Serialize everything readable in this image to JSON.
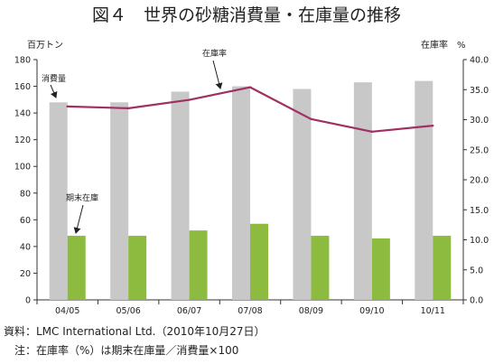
{
  "page": {
    "title": "図４　世界の砂糖消費量・在庫量の推移",
    "source": "資料：LMC International Ltd.（2010年10月27日）",
    "note": "　注：在庫率（%）は期末在庫量／消費量×100"
  },
  "chart_data": {
    "type": "bar",
    "categories": [
      "04/05",
      "05/06",
      "06/07",
      "07/08",
      "08/09",
      "09/10",
      "10/11"
    ],
    "series": [
      {
        "name": "消費量",
        "type": "bar",
        "axis": "left",
        "color": "#c8c8c8",
        "values": [
          148,
          148,
          156,
          160,
          158,
          163,
          164
        ]
      },
      {
        "name": "期末在庫",
        "type": "bar",
        "axis": "left",
        "color": "#8cbb3f",
        "values": [
          48,
          48,
          52,
          57,
          48,
          46,
          48
        ]
      },
      {
        "name": "在庫率",
        "type": "line",
        "axis": "right",
        "color": "#a03060",
        "values": [
          32.2,
          31.9,
          33.3,
          35.4,
          30.1,
          28.0,
          29.0
        ]
      }
    ],
    "y_left": {
      "label": "百万トン",
      "min": 0,
      "max": 180,
      "ticks": [
        "0",
        "20",
        "40",
        "60",
        "80",
        "100",
        "120",
        "140",
        "160",
        "180"
      ]
    },
    "y_right": {
      "label": "在庫率　%",
      "min": 0,
      "max": 40,
      "ticks": [
        "0.0",
        "5.0",
        "10.0",
        "15.0",
        "20.0",
        "25.0",
        "30.0",
        "35.0",
        "40.0"
      ]
    },
    "annotations": [
      "消費量",
      "在庫率",
      "期末在庫"
    ],
    "grid": false,
    "legend": "none"
  }
}
